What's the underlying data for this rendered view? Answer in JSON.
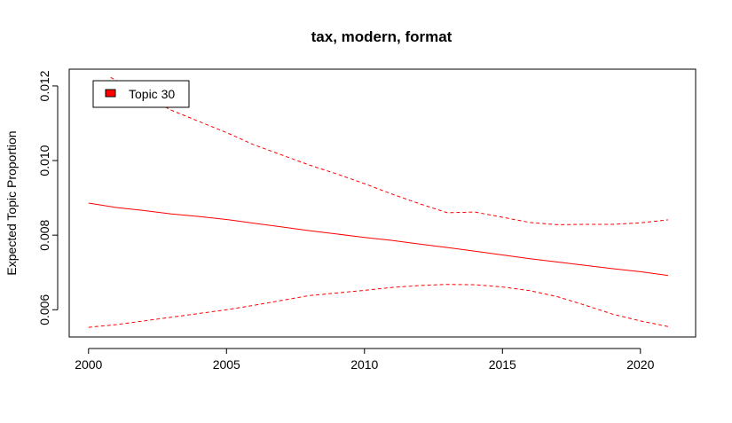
{
  "chart_data": {
    "type": "line",
    "title": "tax, modern, format",
    "xlabel": "",
    "ylabel": "Expected Topic Proportion",
    "xlim": [
      1999.3,
      2022.0
    ],
    "ylim": [
      0.00527,
      0.01245
    ],
    "x_ticks": [
      2000,
      2005,
      2010,
      2015,
      2020
    ],
    "y_ticks": [
      0.006,
      0.008,
      0.01,
      0.012
    ],
    "y_tick_labels": [
      "0.006",
      "0.008",
      "0.010",
      "0.012"
    ],
    "grid": false,
    "legend": {
      "position": "top-left",
      "entries": [
        {
          "label": "Topic 30",
          "color": "#ff0000"
        }
      ]
    },
    "x": [
      2000,
      2001,
      2002,
      2003,
      2004,
      2005,
      2006,
      2007,
      2008,
      2009,
      2010,
      2011,
      2012,
      2013,
      2014,
      2015,
      2016,
      2017,
      2018,
      2019,
      2020,
      2021
    ],
    "series": [
      {
        "name": "Topic 30",
        "role": "estimate",
        "style": "solid",
        "color": "#ff0000",
        "values": [
          0.00886,
          0.00874,
          0.00866,
          0.00857,
          0.0085,
          0.00842,
          0.00832,
          0.00822,
          0.00812,
          0.00803,
          0.00794,
          0.00786,
          0.00776,
          0.00767,
          0.00757,
          0.00747,
          0.00737,
          0.00728,
          0.00719,
          0.0071,
          0.00702,
          0.00692
        ]
      },
      {
        "role": "upper",
        "style": "dashed",
        "color": "#ff0000",
        "values": [
          null,
          null,
          0.01175,
          0.01135,
          0.01105,
          0.01075,
          0.01042,
          0.01015,
          0.00988,
          0.00964,
          0.00938,
          0.0091,
          0.00884,
          0.0086,
          0.00862,
          0.00848,
          0.00834,
          0.00828,
          0.00829,
          0.00829,
          0.00833,
          0.00841
        ]
      },
      {
        "role": "lower",
        "style": "dashed",
        "color": "#ff0000",
        "values": [
          0.00553,
          0.0056,
          0.0057,
          0.0058,
          0.0059,
          0.006,
          0.00612,
          0.00625,
          0.00638,
          0.00645,
          0.00652,
          0.0066,
          0.00665,
          0.00668,
          0.00667,
          0.00661,
          0.00651,
          0.00635,
          0.00612,
          0.00588,
          0.0057,
          0.00555
        ]
      }
    ]
  }
}
